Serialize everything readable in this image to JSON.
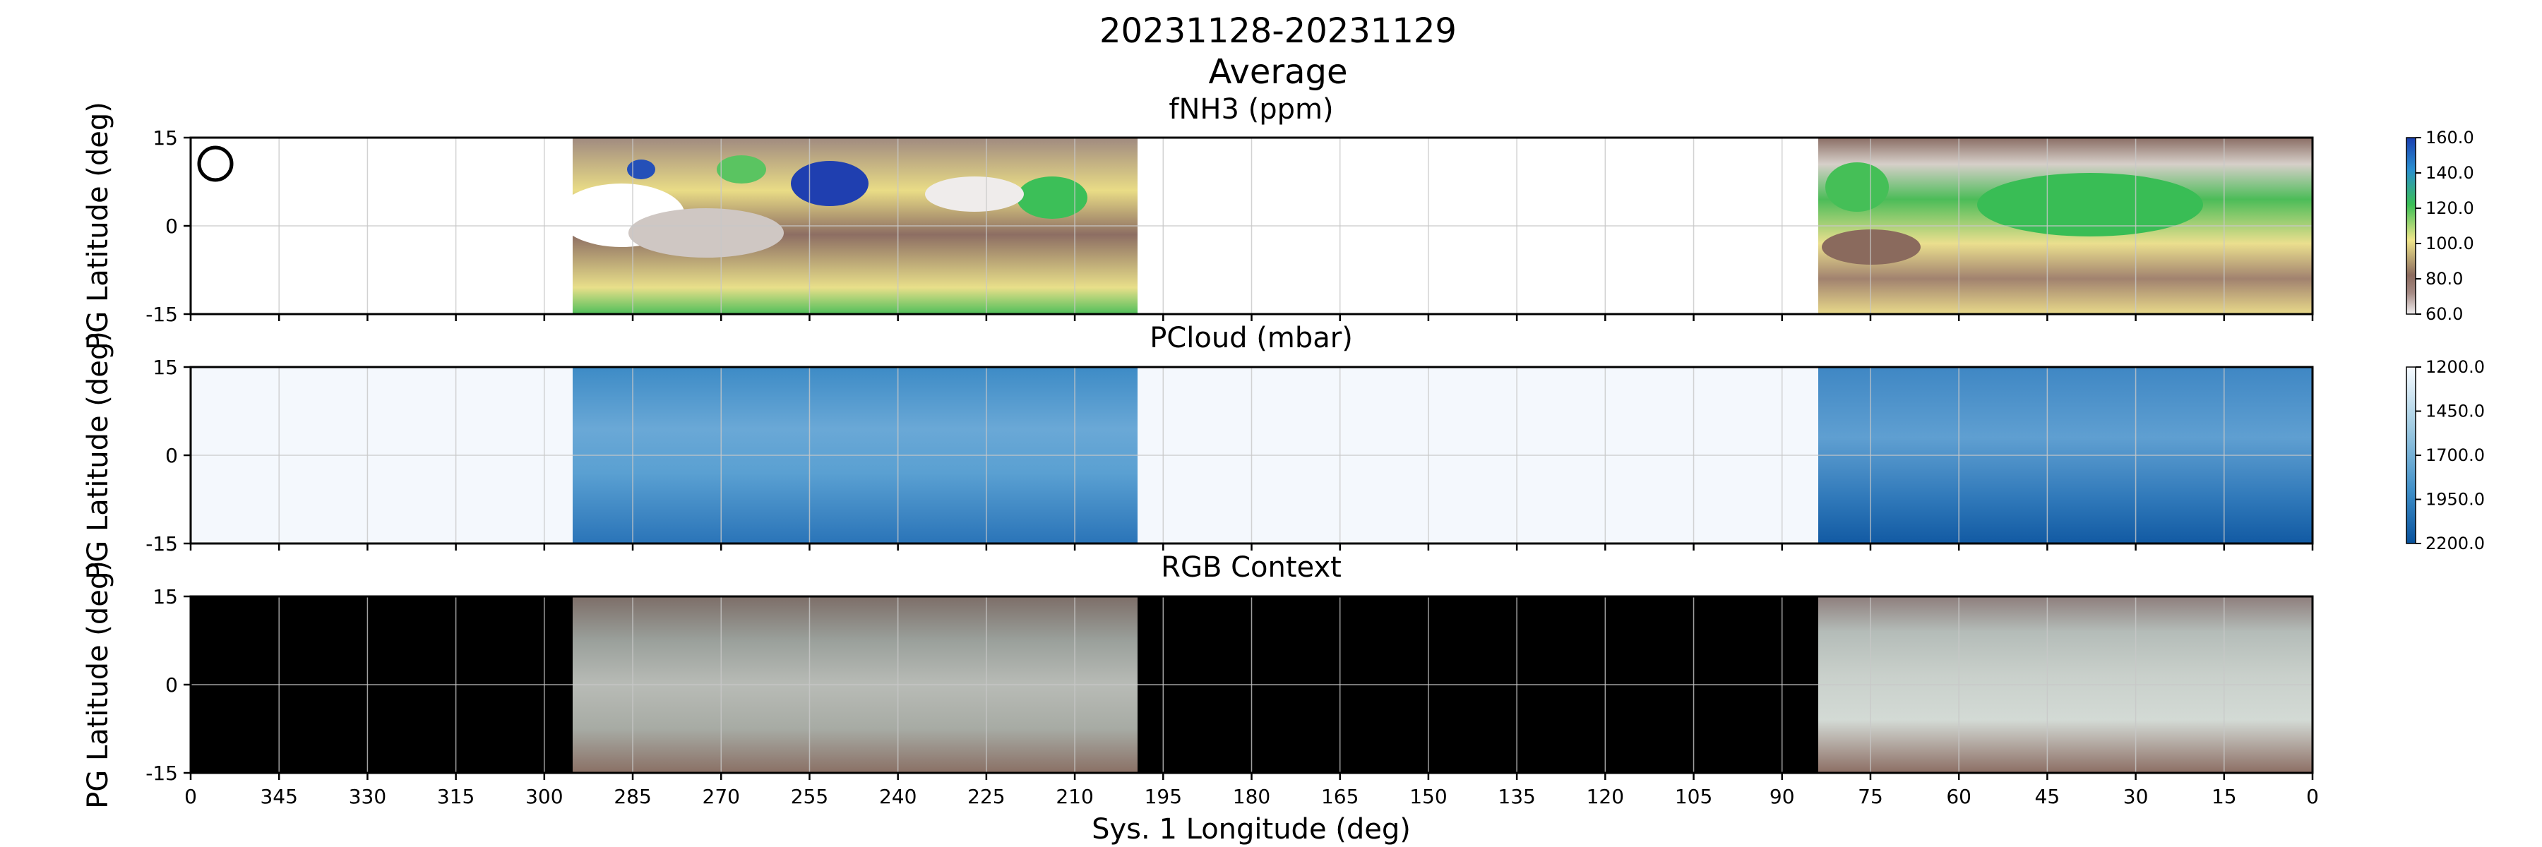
{
  "figure": {
    "title_line1": "20231128-20231129",
    "title_line2": "Average",
    "xlabel": "Sys. 1 Longitude (deg)",
    "xticks": [
      "0",
      "345",
      "330",
      "315",
      "300",
      "285",
      "270",
      "255",
      "240",
      "225",
      "210",
      "195",
      "180",
      "165",
      "150",
      "135",
      "120",
      "105",
      "90",
      "75",
      "60",
      "45",
      "30",
      "15",
      "0"
    ]
  },
  "chart_data": [
    {
      "type": "heatmap",
      "title": "fNH3 (ppm)",
      "ylabel": "PG Latitude (deg)",
      "xlim": [
        360,
        0
      ],
      "ylim": [
        -15,
        15
      ],
      "yticks": [
        "15",
        "0",
        "-15"
      ],
      "data_coverage": [
        [
          296,
          200
        ],
        [
          82,
          0
        ]
      ],
      "colorbar": {
        "ticks": [
          "160.0",
          "140.0",
          "120.0",
          "100.0",
          "80.0",
          "60.0"
        ],
        "range": [
          60,
          160
        ]
      },
      "grid": true,
      "annotation": "circle marker near upper-left"
    },
    {
      "type": "heatmap",
      "title": "PCloud (mbar)",
      "ylabel": "PG Latitude (deg)",
      "xlim": [
        360,
        0
      ],
      "ylim": [
        -15,
        15
      ],
      "yticks": [
        "15",
        "0",
        "-15"
      ],
      "data_coverage": [
        [
          296,
          200
        ],
        [
          82,
          0
        ]
      ],
      "colorbar": {
        "ticks": [
          "1200.0",
          "1450.0",
          "1700.0",
          "1950.0",
          "2200.0"
        ],
        "range": [
          1200,
          2200
        ]
      },
      "grid": true
    },
    {
      "type": "heatmap",
      "title": "RGB Context",
      "ylabel": "PG Latitude (deg)",
      "xlim": [
        360,
        0
      ],
      "ylim": [
        -15,
        15
      ],
      "yticks": [
        "15",
        "0",
        "-15"
      ],
      "data_coverage": [
        [
          296,
          200
        ],
        [
          82,
          0
        ]
      ],
      "grid": true
    }
  ]
}
